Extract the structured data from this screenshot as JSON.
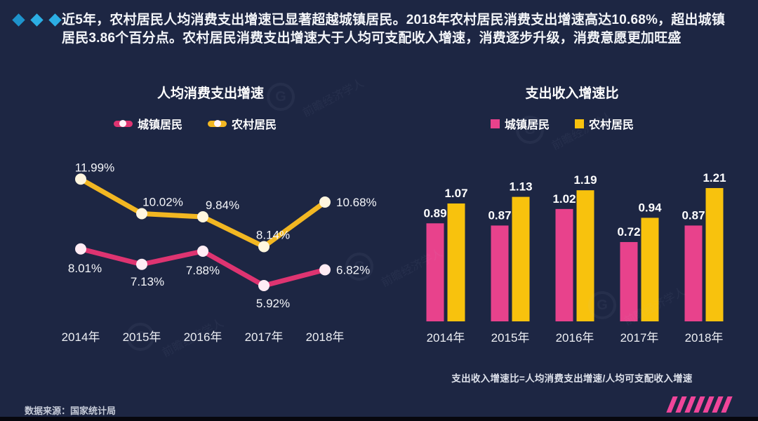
{
  "page": {
    "intro": "近5年，农村居民人均消费支出增速已显著超越城镇居民。2018年农村居民消费支出增速高达10.68%，超出城镇居民3.86个百分点。农村居民消费支出增速大于人均可支配收入增速，消费逐步升级，消费意愿更加旺盛",
    "source": "数据来源：国家统计局",
    "watermark": "前瞻经济学人"
  },
  "colors": {
    "background": "#1D2643",
    "diamond_dark": "#1E93CC",
    "diamond_light": "#2CAEE4",
    "stripe_pink": "#F0459A",
    "line_dot_pink": "#FFECF4",
    "line_dot_yellow": "#FFF6DF",
    "label_text": "#F5F6FA"
  },
  "chart_data": [
    {
      "type": "line",
      "title": "人均消费支出增速",
      "categories": [
        "2014年",
        "2015年",
        "2016年",
        "2017年",
        "2018年"
      ],
      "series": [
        {
          "name": "城镇居民",
          "color": "#DE3471",
          "values": [
            8.01,
            7.13,
            7.88,
            5.92,
            6.82
          ]
        },
        {
          "name": "农村居民",
          "color": "#F2B722",
          "values": [
            11.99,
            10.02,
            9.84,
            8.14,
            10.68
          ]
        }
      ],
      "label_suffix": "%",
      "ylim": [
        5,
        13
      ],
      "grid": false,
      "legend_position": "top"
    },
    {
      "type": "bar",
      "title": "支出收入增速比",
      "categories": [
        "2014年",
        "2015年",
        "2016年",
        "2017年",
        "2018年"
      ],
      "series": [
        {
          "name": "城镇居民",
          "color": "#E8428C",
          "values": [
            0.89,
            0.87,
            1.02,
            0.72,
            0.87
          ]
        },
        {
          "name": "农村居民",
          "color": "#F8C20D",
          "values": [
            1.07,
            1.13,
            1.19,
            0.94,
            1.21
          ]
        }
      ],
      "ylim": [
        0,
        1.4
      ],
      "grid": false,
      "legend_position": "top",
      "footnote": "支出收入增速比=人均消费支出增速/人均可支配收入增速"
    }
  ]
}
